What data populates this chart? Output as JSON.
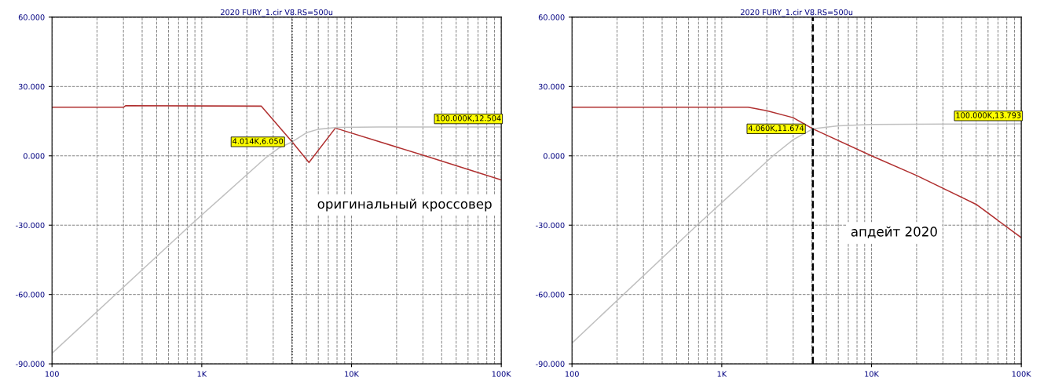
{
  "chart_data": [
    {
      "type": "line",
      "title": "2020 FURY_1.cir V8.RS=500u",
      "log": "x",
      "grid": true,
      "marker": "none",
      "line_style": "solid",
      "xlim": [
        100,
        100000
      ],
      "xticks": [
        {
          "value": 100,
          "label": "100"
        },
        {
          "value": 1000,
          "label": "1K"
        },
        {
          "value": 10000,
          "label": "10K"
        },
        {
          "value": 100000,
          "label": "100K"
        }
      ],
      "ylim": [
        -90,
        60
      ],
      "yticks": [
        {
          "value": 60,
          "label": "60.000"
        },
        {
          "value": 30,
          "label": "30.000"
        },
        {
          "value": 0,
          "label": "0.000"
        },
        {
          "value": -30,
          "label": "-30.000"
        },
        {
          "value": -60,
          "label": "-60.000"
        },
        {
          "value": -90,
          "label": "-90.000"
        }
      ],
      "series": [
        {
          "color": "#b03030",
          "x": [
            100,
            300,
            310,
            2500,
            4014,
            5200,
            7800,
            31000,
            100000
          ],
          "values": [
            21.0,
            21.0,
            21.7,
            21.5,
            6.05,
            -2.9,
            12.0,
            0.0,
            -10.4
          ]
        },
        {
          "color": "#c0c0c0",
          "x": [
            100,
            840,
            2700,
            3300,
            4014,
            5000,
            6000,
            8000,
            15000,
            100000
          ],
          "values": [
            -85.4,
            -30.0,
            -0.6,
            3.5,
            6.05,
            10.0,
            11.5,
            12.3,
            12.5,
            12.504
          ]
        }
      ],
      "ref_lines": [
        {
          "axis": "x",
          "value": 4014,
          "color": "#000000",
          "line_style": "dotted"
        }
      ],
      "annotations": [
        {
          "text": "4.014K,6.050",
          "x": 4014,
          "y": 6.05
        },
        {
          "text": "100.000K,12.504",
          "x": 100000,
          "y": 12.504
        },
        "оригинальный кроссовер"
      ]
    },
    {
      "type": "line",
      "title": "2020 FURY_1.cir V8.RS=500u",
      "log": "x",
      "grid": true,
      "marker": "none",
      "line_style": "solid",
      "xlim": [
        100,
        100000
      ],
      "xticks": [
        {
          "value": 100,
          "label": "100"
        },
        {
          "value": 1000,
          "label": "1K"
        },
        {
          "value": 10000,
          "label": "10K"
        },
        {
          "value": 100000,
          "label": "100K"
        }
      ],
      "ylim": [
        -90,
        60
      ],
      "yticks": [
        {
          "value": 60,
          "label": "60.000"
        },
        {
          "value": 30,
          "label": "30.000"
        },
        {
          "value": 0,
          "label": "0.000"
        },
        {
          "value": -30,
          "label": "-30.000"
        },
        {
          "value": -60,
          "label": "-60.000"
        },
        {
          "value": -90,
          "label": "-90.000"
        }
      ],
      "series": [
        {
          "color": "#b03030",
          "x": [
            100,
            1500,
            2000,
            3000,
            4060,
            10000,
            20000,
            50000,
            100000
          ],
          "values": [
            21.0,
            21.0,
            19.5,
            16.5,
            11.674,
            0.0,
            -8.5,
            -21.0,
            -35.4
          ]
        },
        {
          "color": "#c0c0c0",
          "x": [
            100,
            684,
            2200,
            3000,
            4060,
            6000,
            10000,
            30000,
            100000
          ],
          "values": [
            -81.0,
            -30.0,
            0.0,
            7.0,
            11.674,
            13.0,
            13.6,
            13.75,
            13.793
          ]
        }
      ],
      "ref_lines": [
        {
          "axis": "x",
          "value": 4060,
          "color": "#000000",
          "line_style": "dashed"
        }
      ],
      "annotations": [
        {
          "text": "4.060K,11.674",
          "x": 4060,
          "y": 11.674
        },
        {
          "text": "100.000K,13.793",
          "x": 100000,
          "y": 13.793
        },
        "апдейт 2020"
      ]
    }
  ]
}
